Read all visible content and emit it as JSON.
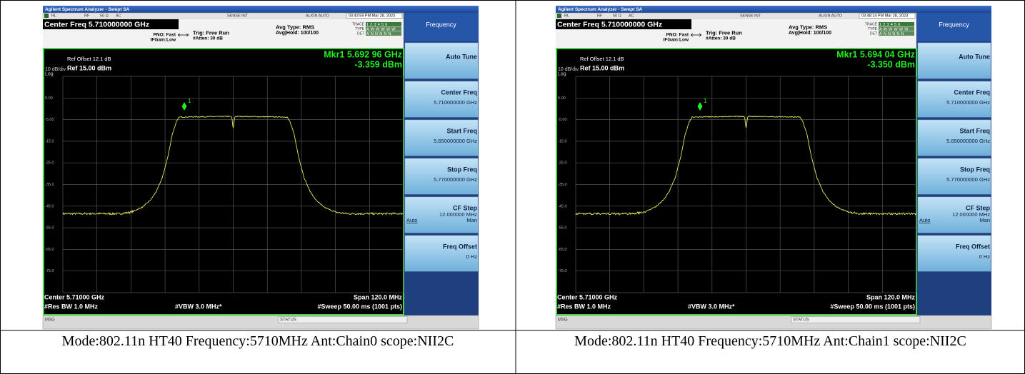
{
  "screens": [
    {
      "title_bar": "Agilent Spectrum Analyzer - Swept SA",
      "status": [
        "RL",
        "RF",
        "50 Ω",
        "AC",
        "SENSE:INT",
        "ALIGN AUTO"
      ],
      "timestamp": "03:43:59 PM Mar 28, 2023",
      "center_freq": "Center Freq 5.710000000 GHz",
      "pno": "PNO: Fast",
      "ifgain": "IFGain:Low",
      "trig": "Trig: Free Run",
      "atten": "#Atten: 30 dB",
      "avg_type": "Avg Type: RMS",
      "avg_hold": "Avg|Hold: 100/100",
      "trace_rows": [
        {
          "label": "TRACE",
          "value": "123456"
        },
        {
          "label": "TYPE",
          "value": "AWWWWW"
        },
        {
          "label": "DET",
          "value": "ANNNNN"
        }
      ],
      "ref_offset": "Ref Offset 12.1 dB",
      "scale": "10 dB/div",
      "ref": "Ref 15.00 dBm",
      "log": "Log",
      "marker_freq": "Mkr1 5.692 96 GHz",
      "marker_amp": "-3.359 dBm",
      "marker_label": "1",
      "y_labels": [
        "5.00",
        "-5.00",
        "-15.0",
        "-25.0",
        "-35.0",
        "-45.0",
        "-55.0",
        "-65.0",
        "-75.0"
      ],
      "center": "Center 5.71000 GHz",
      "res_bw": "#Res BW 1.0 MHz",
      "vbw": "#VBW 3.0 MHz*",
      "span": "Span 120.0 MHz",
      "sweep": "#Sweep  50.00 ms (1001 pts)",
      "msg": "MSG",
      "status_label": "STATUS",
      "menu": {
        "title": "Frequency",
        "buttons": [
          {
            "label": "Auto Tune"
          },
          {
            "label": "Center Freq",
            "value": "5.710000000 GHz"
          },
          {
            "label": "Start Freq",
            "value": "5.650000000 GHz"
          },
          {
            "label": "Stop Freq",
            "value": "5.770000000 GHz"
          },
          {
            "label": "CF Step",
            "value": "12.000000 MHz",
            "auto": "Auto",
            "man": "Man"
          },
          {
            "label": "Freq Offset",
            "value": "0 Hz"
          }
        ]
      }
    },
    {
      "title_bar": "Agilent Spectrum Analyzer - Swept SA",
      "status": [
        "RL",
        "RF",
        "50 Ω",
        "AC",
        "SENSE:INT",
        "ALIGN AUTO"
      ],
      "timestamp": "03:48:14 PM Mar 28, 2023",
      "center_freq": "Center Freq 5.710000000 GHz",
      "pno": "PNO: Fast",
      "ifgain": "IFGain:Low",
      "trig": "Trig: Free Run",
      "atten": "#Atten: 30 dB",
      "avg_type": "Avg Type: RMS",
      "avg_hold": "Avg|Hold: 100/100",
      "trace_rows": [
        {
          "label": "TRACE",
          "value": "123456"
        },
        {
          "label": "TYPE",
          "value": "AWWWWW"
        },
        {
          "label": "DET",
          "value": "ANNNNN"
        }
      ],
      "ref_offset": "Ref Offset 12.1 dB",
      "scale": "10 dB/div",
      "ref": "Ref 15.00 dBm",
      "log": "Log",
      "marker_freq": "Mkr1 5.694 04 GHz",
      "marker_amp": "-3.350 dBm",
      "marker_label": "1",
      "y_labels": [
        "5.00",
        "-5.00",
        "-15.0",
        "-25.0",
        "-35.0",
        "-45.0",
        "-55.0",
        "-65.0",
        "-75.0"
      ],
      "center": "Center 5.71000 GHz",
      "res_bw": "#Res BW 1.0 MHz",
      "vbw": "#VBW 3.0 MHz*",
      "span": "Span 120.0 MHz",
      "sweep": "#Sweep  50.00 ms (1001 pts)",
      "msg": "MSG",
      "status_label": "STATUS",
      "menu": {
        "title": "Frequency",
        "buttons": [
          {
            "label": "Auto Tune"
          },
          {
            "label": "Center Freq",
            "value": "5.710000000 GHz"
          },
          {
            "label": "Start Freq",
            "value": "5.650000000 GHz"
          },
          {
            "label": "Stop Freq",
            "value": "5.770000000 GHz"
          },
          {
            "label": "CF Step",
            "value": "12.000000 MHz",
            "auto": "Auto",
            "man": "Man"
          },
          {
            "label": "Freq Offset",
            "value": "0 Hz"
          }
        ]
      }
    }
  ],
  "captions": [
    "Mode:802.11n HT40 Frequency:5710MHz Ant:Chain0 scope:NII2C",
    "Mode:802.11n HT40 Frequency:5710MHz Ant:Chain1 scope:NII2C"
  ]
}
